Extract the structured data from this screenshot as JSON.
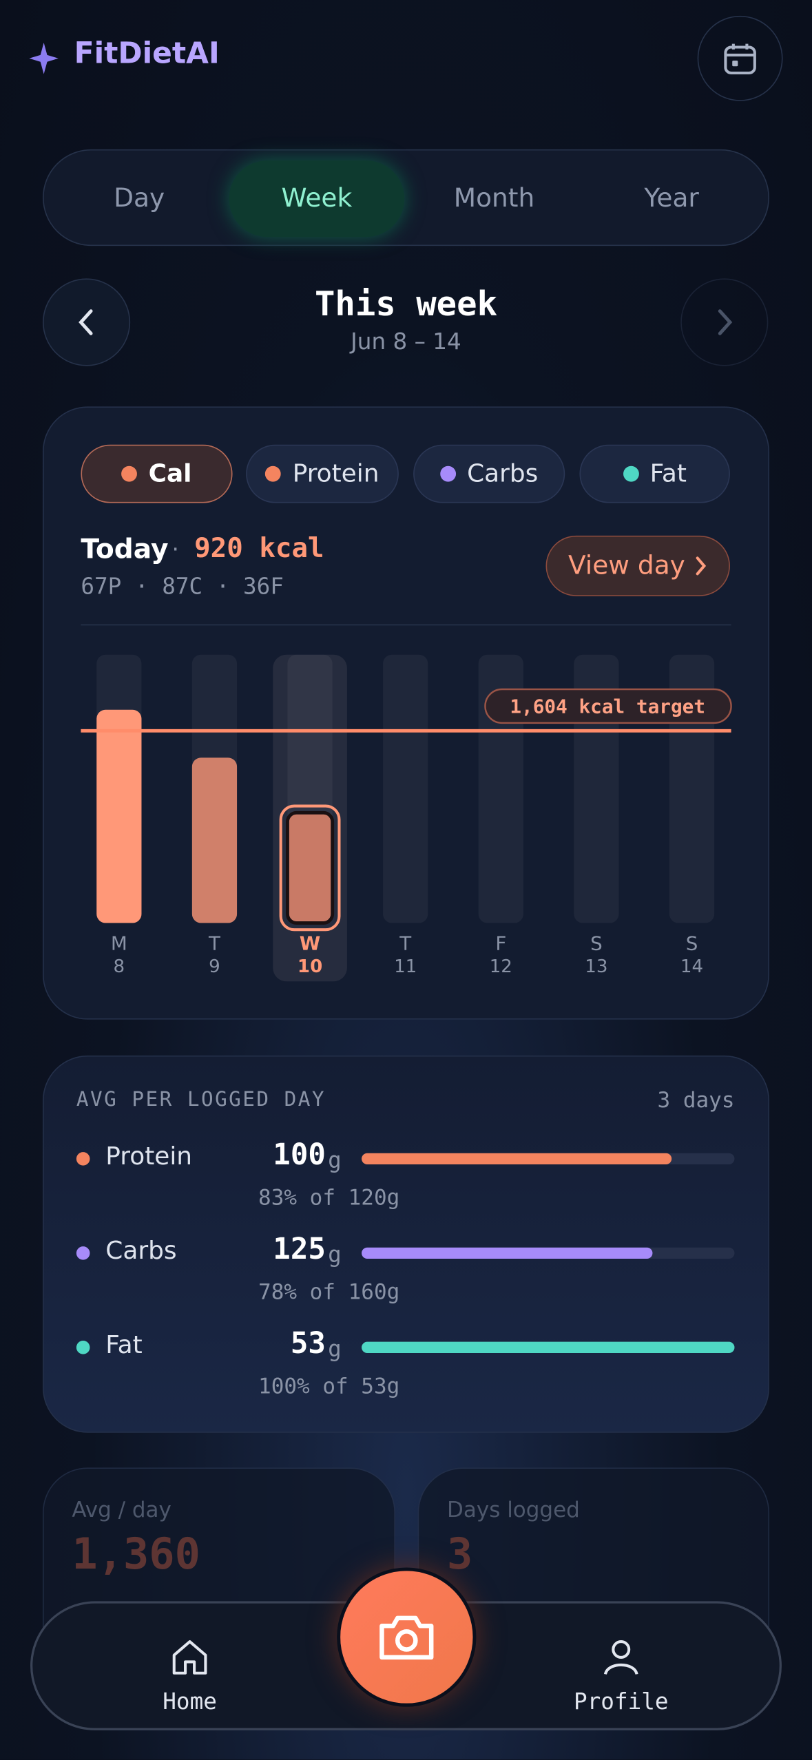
{
  "header": {
    "brand": "FitDietAI"
  },
  "tabs": {
    "items": [
      "Day",
      "Week",
      "Month",
      "Year"
    ],
    "active": 1
  },
  "period": {
    "title": "This week",
    "range": "Jun 8 – 14"
  },
  "legend": [
    {
      "name": "Cal",
      "color": "#f4845f"
    },
    {
      "name": "Protein",
      "color": "#f4845f"
    },
    {
      "name": "Carbs",
      "color": "#a78bfa"
    },
    {
      "name": "Fat",
      "color": "#4fd8c4"
    }
  ],
  "today": {
    "label": "Today",
    "kcal": "920 kcal",
    "macros": "67P · 87C · 36F",
    "button": "View day"
  },
  "chart_data": {
    "type": "bar",
    "categories": [
      "M",
      "T",
      "W",
      "T",
      "F",
      "S",
      "S"
    ],
    "days": [
      "8",
      "9",
      "10",
      "11",
      "12",
      "13",
      "14"
    ],
    "values": [
      1780,
      1380,
      920,
      null,
      null,
      null,
      null
    ],
    "color": "#ff9878",
    "ylim": [
      0,
      2240
    ],
    "target": {
      "value": 1604,
      "label": "1,604 kcal target"
    },
    "selected": 2
  },
  "averages": {
    "title": "AVG PER LOGGED DAY",
    "days": "3 days",
    "rows": [
      {
        "name": "Protein",
        "color": "#f4845f",
        "value": 100,
        "unit": "g",
        "percent": 83,
        "detail": "83% of 120g"
      },
      {
        "name": "Carbs",
        "color": "#a78bfa",
        "value": 125,
        "unit": "g",
        "percent": 78,
        "detail": "78% of 160g"
      },
      {
        "name": "Fat",
        "color": "#4fd8c4",
        "value": 53,
        "unit": "g",
        "percent": 100,
        "detail": "100% of 53g"
      }
    ]
  },
  "stats": [
    {
      "label": "Avg / day",
      "value": "1,360"
    },
    {
      "label": "Days logged",
      "value": "3"
    }
  ],
  "nav": {
    "left": "Home",
    "right": "Profile"
  }
}
